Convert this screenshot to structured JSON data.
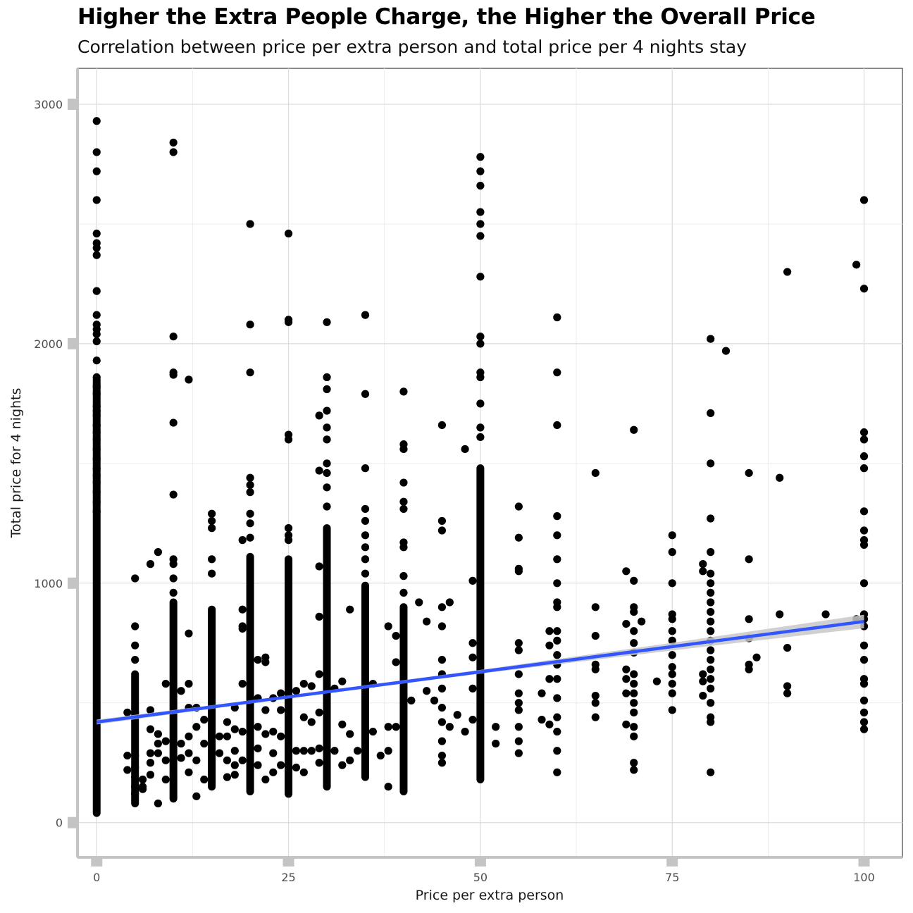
{
  "chart_data": {
    "type": "scatter",
    "title": "Higher the Extra People Charge, the Higher the Overall Price",
    "subtitle": "Correlation between price per extra person and total price per 4 nights stay",
    "xlabel": "Price per extra person",
    "ylabel": "Total price for 4 nights",
    "xlim": [
      -2.5,
      105
    ],
    "ylim": [
      -145,
      3150
    ],
    "x_ticks": [
      0,
      25,
      50,
      75,
      100
    ],
    "y_ticks": [
      0,
      1000,
      2000,
      3000
    ],
    "x_tick_labels": [
      "0",
      "25",
      "50",
      "75",
      "100"
    ],
    "y_tick_labels": [
      "0",
      "1000",
      "2000",
      "3000"
    ],
    "grid": true,
    "trend_line": {
      "method": "linear",
      "x": [
        0,
        100
      ],
      "y": [
        420,
        840
      ],
      "ci_halfwidth_at_x": [
        [
          0,
          10
        ],
        [
          25,
          6
        ],
        [
          50,
          8
        ],
        [
          75,
          16
        ],
        [
          100,
          28
        ]
      ],
      "color": "#3355ff",
      "ci_color": "#c8c8c8"
    },
    "point_color": "#000000",
    "vertical_bands": [
      {
        "x": 0,
        "min": 40,
        "max": 1850
      },
      {
        "x": 5,
        "min": 80,
        "max": 620
      },
      {
        "x": 10,
        "min": 100,
        "max": 920
      },
      {
        "x": 15,
        "min": 150,
        "max": 890
      },
      {
        "x": 20,
        "min": 130,
        "max": 1110
      },
      {
        "x": 25,
        "min": 120,
        "max": 1100
      },
      {
        "x": 30,
        "min": 150,
        "max": 1230
      },
      {
        "x": 35,
        "min": 190,
        "max": 990
      },
      {
        "x": 40,
        "min": 130,
        "max": 900
      },
      {
        "x": 50,
        "min": 180,
        "max": 1480
      }
    ],
    "points": [
      [
        0,
        2930
      ],
      [
        0,
        2800
      ],
      [
        0,
        2720
      ],
      [
        0,
        2600
      ],
      [
        0,
        2460
      ],
      [
        0,
        2420
      ],
      [
        0,
        2400
      ],
      [
        0,
        2370
      ],
      [
        0,
        2220
      ],
      [
        0,
        2120
      ],
      [
        0,
        2080
      ],
      [
        0,
        2060
      ],
      [
        0,
        2040
      ],
      [
        0,
        2010
      ],
      [
        0,
        1930
      ],
      [
        0,
        1860
      ],
      [
        0,
        1820
      ],
      [
        0,
        1790
      ],
      [
        0,
        1740
      ],
      [
        0,
        1720
      ],
      [
        0,
        1700
      ],
      [
        0,
        1660
      ],
      [
        0,
        1630
      ],
      [
        0,
        1600
      ],
      [
        0,
        1560
      ],
      [
        0,
        1520
      ],
      [
        0,
        1480
      ],
      [
        0,
        1450
      ],
      [
        0,
        1420
      ],
      [
        0,
        1380
      ],
      [
        0,
        1340
      ],
      [
        0,
        1300
      ],
      [
        5,
        1020
      ],
      [
        5,
        820
      ],
      [
        5,
        740
      ],
      [
        5,
        680
      ],
      [
        5,
        460
      ],
      [
        5,
        280
      ],
      [
        5,
        230
      ],
      [
        5,
        190
      ],
      [
        5,
        150
      ],
      [
        5,
        120
      ],
      [
        4,
        460
      ],
      [
        4,
        220
      ],
      [
        4,
        280
      ],
      [
        6,
        180
      ],
      [
        6,
        150
      ],
      [
        6,
        140
      ],
      [
        7,
        470
      ],
      [
        7,
        390
      ],
      [
        7,
        290
      ],
      [
        7,
        250
      ],
      [
        7,
        200
      ],
      [
        7,
        1080
      ],
      [
        8,
        1130
      ],
      [
        8,
        370
      ],
      [
        8,
        330
      ],
      [
        8,
        290
      ],
      [
        8,
        80
      ],
      [
        9,
        580
      ],
      [
        9,
        340
      ],
      [
        9,
        260
      ],
      [
        9,
        180
      ],
      [
        10,
        2840
      ],
      [
        10,
        2800
      ],
      [
        10,
        2030
      ],
      [
        10,
        1880
      ],
      [
        10,
        1870
      ],
      [
        10,
        1670
      ],
      [
        10,
        1370
      ],
      [
        10,
        1100
      ],
      [
        10,
        1080
      ],
      [
        10,
        1020
      ],
      [
        10,
        960
      ],
      [
        11,
        550
      ],
      [
        11,
        330
      ],
      [
        11,
        270
      ],
      [
        12,
        1850
      ],
      [
        12,
        790
      ],
      [
        12,
        580
      ],
      [
        12,
        480
      ],
      [
        12,
        360
      ],
      [
        12,
        290
      ],
      [
        12,
        210
      ],
      [
        13,
        480
      ],
      [
        13,
        400
      ],
      [
        13,
        260
      ],
      [
        13,
        110
      ],
      [
        14,
        430
      ],
      [
        14,
        330
      ],
      [
        14,
        180
      ],
      [
        15,
        1290
      ],
      [
        15,
        1260
      ],
      [
        15,
        1230
      ],
      [
        15,
        1100
      ],
      [
        15,
        1040
      ],
      [
        16,
        360
      ],
      [
        16,
        290
      ],
      [
        17,
        420
      ],
      [
        17,
        360
      ],
      [
        17,
        260
      ],
      [
        17,
        190
      ],
      [
        18,
        480
      ],
      [
        18,
        390
      ],
      [
        18,
        300
      ],
      [
        18,
        240
      ],
      [
        18,
        200
      ],
      [
        19,
        1180
      ],
      [
        19,
        890
      ],
      [
        19,
        820
      ],
      [
        19,
        810
      ],
      [
        19,
        580
      ],
      [
        19,
        380
      ],
      [
        19,
        260
      ],
      [
        20,
        2500
      ],
      [
        20,
        2080
      ],
      [
        20,
        1880
      ],
      [
        20,
        1440
      ],
      [
        20,
        1410
      ],
      [
        20,
        1380
      ],
      [
        20,
        1290
      ],
      [
        20,
        1250
      ],
      [
        20,
        1190
      ],
      [
        21,
        680
      ],
      [
        21,
        520
      ],
      [
        21,
        400
      ],
      [
        21,
        310
      ],
      [
        21,
        240
      ],
      [
        22,
        690
      ],
      [
        22,
        670
      ],
      [
        22,
        470
      ],
      [
        22,
        370
      ],
      [
        22,
        180
      ],
      [
        23,
        520
      ],
      [
        23,
        380
      ],
      [
        23,
        290
      ],
      [
        23,
        210
      ],
      [
        24,
        540
      ],
      [
        24,
        470
      ],
      [
        24,
        360
      ],
      [
        24,
        240
      ],
      [
        25,
        2460
      ],
      [
        25,
        2100
      ],
      [
        25,
        2090
      ],
      [
        25,
        1620
      ],
      [
        25,
        1600
      ],
      [
        25,
        1230
      ],
      [
        25,
        1200
      ],
      [
        25,
        1180
      ],
      [
        26,
        550
      ],
      [
        26,
        300
      ],
      [
        26,
        230
      ],
      [
        27,
        580
      ],
      [
        27,
        440
      ],
      [
        27,
        300
      ],
      [
        27,
        210
      ],
      [
        28,
        570
      ],
      [
        28,
        420
      ],
      [
        28,
        300
      ],
      [
        29,
        460
      ],
      [
        29,
        310
      ],
      [
        29,
        250
      ],
      [
        30,
        2090
      ],
      [
        30,
        1860
      ],
      [
        30,
        1810
      ],
      [
        30,
        1720
      ],
      [
        30,
        1650
      ],
      [
        30,
        1600
      ],
      [
        30,
        1500
      ],
      [
        30,
        1460
      ],
      [
        30,
        1400
      ],
      [
        30,
        1320
      ],
      [
        29,
        1700
      ],
      [
        29,
        1470
      ],
      [
        29,
        1070
      ],
      [
        29,
        860
      ],
      [
        29,
        620
      ],
      [
        31,
        560
      ],
      [
        31,
        300
      ],
      [
        32,
        590
      ],
      [
        32,
        410
      ],
      [
        32,
        240
      ],
      [
        33,
        890
      ],
      [
        33,
        370
      ],
      [
        33,
        260
      ],
      [
        34,
        300
      ],
      [
        35,
        2120
      ],
      [
        35,
        1790
      ],
      [
        35,
        1480
      ],
      [
        35,
        1310
      ],
      [
        35,
        1260
      ],
      [
        35,
        1200
      ],
      [
        35,
        1150
      ],
      [
        35,
        1100
      ],
      [
        35,
        1040
      ],
      [
        36,
        580
      ],
      [
        36,
        380
      ],
      [
        37,
        280
      ],
      [
        38,
        820
      ],
      [
        38,
        400
      ],
      [
        38,
        300
      ],
      [
        38,
        150
      ],
      [
        39,
        780
      ],
      [
        39,
        670
      ],
      [
        39,
        400
      ],
      [
        40,
        1800
      ],
      [
        40,
        1580
      ],
      [
        40,
        1560
      ],
      [
        40,
        1420
      ],
      [
        40,
        1340
      ],
      [
        40,
        1310
      ],
      [
        40,
        1170
      ],
      [
        40,
        1150
      ],
      [
        40,
        1030
      ],
      [
        40,
        960
      ],
      [
        41,
        510
      ],
      [
        42,
        920
      ],
      [
        43,
        840
      ],
      [
        43,
        550
      ],
      [
        44,
        510
      ],
      [
        45,
        1660
      ],
      [
        45,
        1260
      ],
      [
        45,
        1220
      ],
      [
        45,
        900
      ],
      [
        45,
        820
      ],
      [
        45,
        680
      ],
      [
        45,
        620
      ],
      [
        45,
        560
      ],
      [
        45,
        480
      ],
      [
        45,
        420
      ],
      [
        45,
        340
      ],
      [
        45,
        280
      ],
      [
        45,
        250
      ],
      [
        46,
        920
      ],
      [
        46,
        400
      ],
      [
        47,
        450
      ],
      [
        48,
        1560
      ],
      [
        48,
        380
      ],
      [
        49,
        1010
      ],
      [
        49,
        750
      ],
      [
        49,
        690
      ],
      [
        49,
        560
      ],
      [
        49,
        430
      ],
      [
        50,
        2780
      ],
      [
        50,
        2720
      ],
      [
        50,
        2660
      ],
      [
        50,
        2550
      ],
      [
        50,
        2500
      ],
      [
        50,
        2450
      ],
      [
        50,
        2280
      ],
      [
        50,
        2030
      ],
      [
        50,
        2000
      ],
      [
        50,
        1880
      ],
      [
        50,
        1860
      ],
      [
        50,
        1750
      ],
      [
        50,
        1650
      ],
      [
        50,
        1610
      ],
      [
        52,
        400
      ],
      [
        52,
        330
      ],
      [
        55,
        1320
      ],
      [
        55,
        1190
      ],
      [
        55,
        1060
      ],
      [
        55,
        1050
      ],
      [
        55,
        750
      ],
      [
        55,
        720
      ],
      [
        55,
        620
      ],
      [
        55,
        540
      ],
      [
        55,
        500
      ],
      [
        55,
        470
      ],
      [
        55,
        400
      ],
      [
        55,
        340
      ],
      [
        55,
        290
      ],
      [
        58,
        540
      ],
      [
        58,
        430
      ],
      [
        59,
        800
      ],
      [
        59,
        740
      ],
      [
        59,
        600
      ],
      [
        59,
        410
      ],
      [
        60,
        2110
      ],
      [
        60,
        1880
      ],
      [
        60,
        1660
      ],
      [
        60,
        1280
      ],
      [
        60,
        1200
      ],
      [
        60,
        1100
      ],
      [
        60,
        1000
      ],
      [
        60,
        920
      ],
      [
        60,
        900
      ],
      [
        60,
        800
      ],
      [
        60,
        760
      ],
      [
        60,
        700
      ],
      [
        60,
        660
      ],
      [
        60,
        600
      ],
      [
        60,
        520
      ],
      [
        60,
        440
      ],
      [
        60,
        380
      ],
      [
        60,
        300
      ],
      [
        60,
        210
      ],
      [
        65,
        1460
      ],
      [
        65,
        900
      ],
      [
        65,
        780
      ],
      [
        65,
        660
      ],
      [
        65,
        640
      ],
      [
        65,
        530
      ],
      [
        65,
        500
      ],
      [
        65,
        440
      ],
      [
        69,
        1050
      ],
      [
        69,
        830
      ],
      [
        69,
        640
      ],
      [
        69,
        600
      ],
      [
        69,
        540
      ],
      [
        69,
        410
      ],
      [
        70,
        1640
      ],
      [
        70,
        1010
      ],
      [
        70,
        900
      ],
      [
        70,
        880
      ],
      [
        70,
        800
      ],
      [
        70,
        750
      ],
      [
        70,
        710
      ],
      [
        70,
        620
      ],
      [
        70,
        580
      ],
      [
        70,
        540
      ],
      [
        70,
        500
      ],
      [
        70,
        460
      ],
      [
        70,
        400
      ],
      [
        70,
        360
      ],
      [
        70,
        250
      ],
      [
        70,
        220
      ],
      [
        71,
        840
      ],
      [
        73,
        590
      ],
      [
        75,
        1200
      ],
      [
        75,
        1130
      ],
      [
        75,
        1000
      ],
      [
        75,
        870
      ],
      [
        75,
        850
      ],
      [
        75,
        800
      ],
      [
        75,
        760
      ],
      [
        75,
        700
      ],
      [
        75,
        650
      ],
      [
        75,
        620
      ],
      [
        75,
        580
      ],
      [
        75,
        540
      ],
      [
        75,
        470
      ],
      [
        79,
        1080
      ],
      [
        79,
        1050
      ],
      [
        79,
        620
      ],
      [
        79,
        590
      ],
      [
        79,
        530
      ],
      [
        80,
        2020
      ],
      [
        80,
        1710
      ],
      [
        80,
        1500
      ],
      [
        80,
        1270
      ],
      [
        80,
        1130
      ],
      [
        80,
        1040
      ],
      [
        80,
        1000
      ],
      [
        80,
        960
      ],
      [
        80,
        920
      ],
      [
        80,
        880
      ],
      [
        80,
        840
      ],
      [
        80,
        800
      ],
      [
        80,
        760
      ],
      [
        80,
        720
      ],
      [
        80,
        680
      ],
      [
        80,
        640
      ],
      [
        80,
        600
      ],
      [
        80,
        560
      ],
      [
        80,
        500
      ],
      [
        80,
        440
      ],
      [
        80,
        420
      ],
      [
        80,
        210
      ],
      [
        82,
        1970
      ],
      [
        85,
        1460
      ],
      [
        85,
        1100
      ],
      [
        85,
        850
      ],
      [
        85,
        770
      ],
      [
        85,
        660
      ],
      [
        85,
        640
      ],
      [
        86,
        690
      ],
      [
        89,
        1440
      ],
      [
        89,
        870
      ],
      [
        90,
        2300
      ],
      [
        90,
        730
      ],
      [
        90,
        570
      ],
      [
        90,
        540
      ],
      [
        95,
        870
      ],
      [
        99,
        2330
      ],
      [
        99,
        850
      ],
      [
        100,
        2600
      ],
      [
        100,
        2230
      ],
      [
        100,
        1630
      ],
      [
        100,
        1600
      ],
      [
        100,
        1530
      ],
      [
        100,
        1480
      ],
      [
        100,
        1300
      ],
      [
        100,
        1220
      ],
      [
        100,
        1180
      ],
      [
        100,
        1160
      ],
      [
        100,
        1000
      ],
      [
        100,
        870
      ],
      [
        100,
        850
      ],
      [
        100,
        820
      ],
      [
        100,
        740
      ],
      [
        100,
        680
      ],
      [
        100,
        600
      ],
      [
        100,
        580
      ],
      [
        100,
        510
      ],
      [
        100,
        460
      ],
      [
        100,
        420
      ],
      [
        100,
        390
      ]
    ]
  }
}
